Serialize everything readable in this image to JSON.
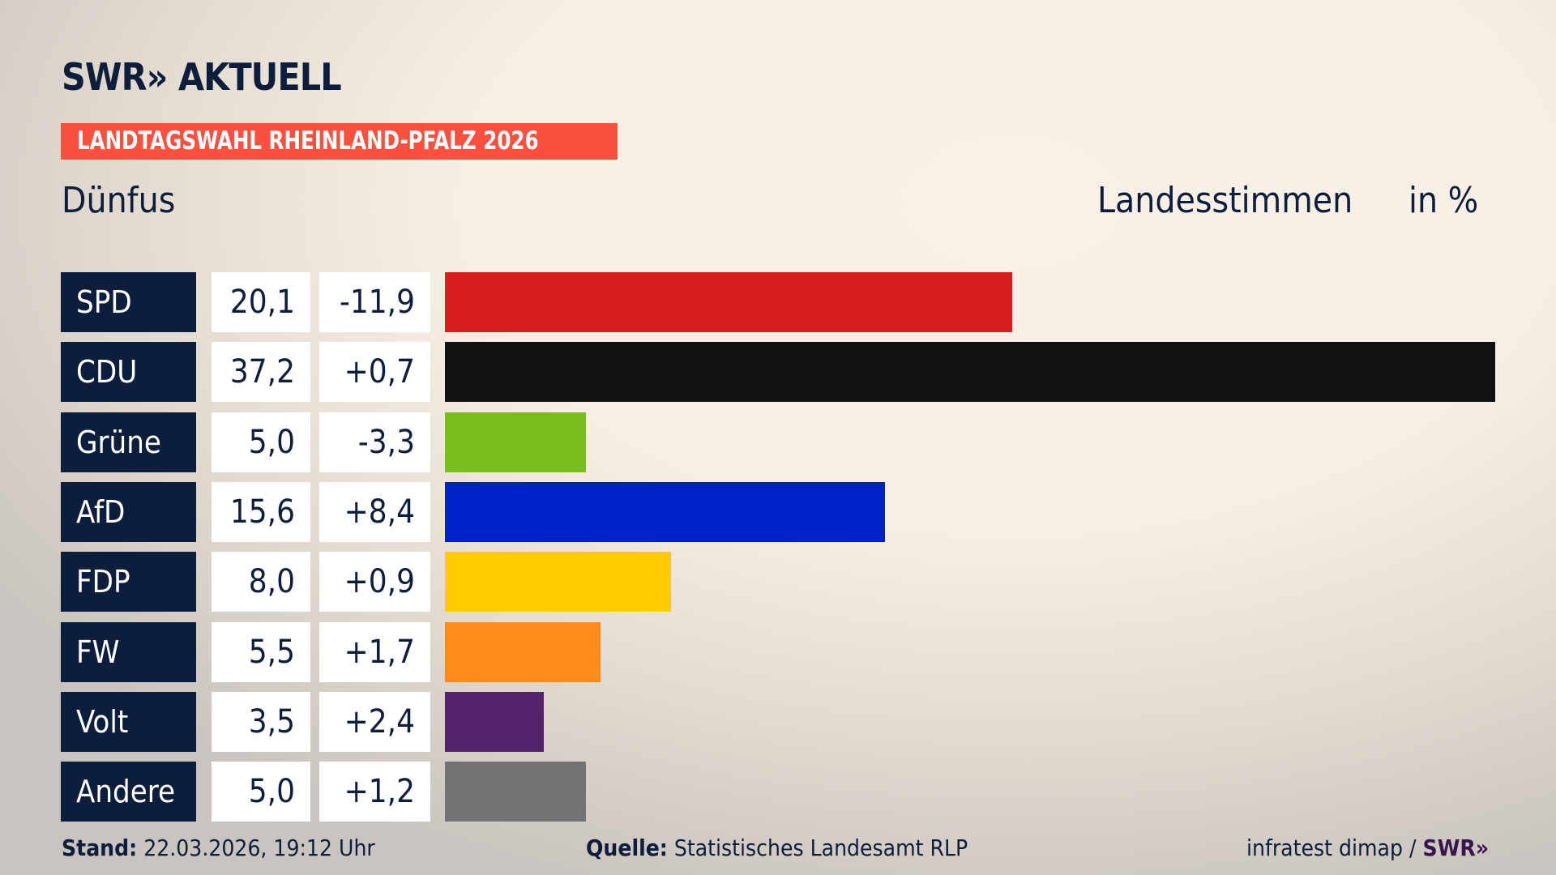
{
  "header": {
    "logo": "SWR» AKTUELL",
    "banner": "LANDTAGSWAHL RHEINLAND-PFALZ 2026",
    "constituency": "Dünfus",
    "measure": "Landesstimmen",
    "unit": "in %"
  },
  "chart_data": {
    "type": "bar",
    "orientation": "horizontal",
    "categories": [
      "SPD",
      "CDU",
      "Grüne",
      "AfD",
      "FDP",
      "FW",
      "Volt",
      "Andere"
    ],
    "values": [
      20.1,
      37.2,
      5.0,
      15.6,
      8.0,
      5.5,
      3.5,
      5.0
    ],
    "value_labels": [
      "20,1",
      "37,2",
      "5,0",
      "15,6",
      "8,0",
      "5,5",
      "3,5",
      "5,0"
    ],
    "change_labels": [
      "-11,9",
      "+0,7",
      "-3,3",
      "+8,4",
      "+0,9",
      "+1,7",
      "+2,4",
      "+1,2"
    ],
    "changes": [
      -11.9,
      0.7,
      -3.3,
      8.4,
      0.9,
      1.7,
      2.4,
      1.2
    ],
    "colors": [
      "#d81f1f",
      "#111111",
      "#78be1e",
      "#0022c8",
      "#ffcc00",
      "#ff8c19",
      "#56226e",
      "#737373"
    ],
    "ylabel": "Landesstimmen",
    "unit": "in %"
  },
  "footer": {
    "stand_label": "Stand:",
    "stand_value": "22.03.2026, 19:12 Uhr",
    "source_label": "Quelle:",
    "source_value": "Statistisches Landesamt RLP",
    "credit": "infratest dimap /",
    "credit_logo": "SWR»"
  }
}
